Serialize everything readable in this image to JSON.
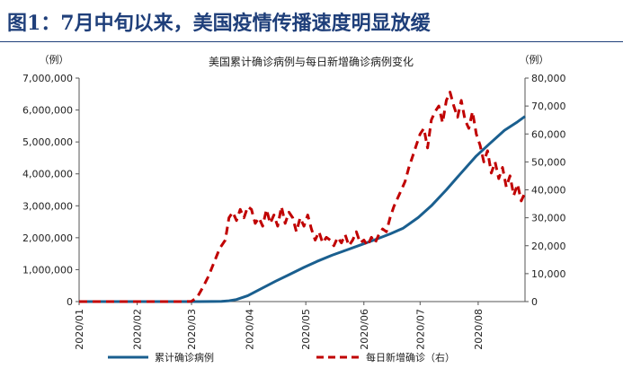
{
  "figure_title": "图1：7月中旬以来，美国疫情传播速度明显放缓",
  "colors": {
    "title": "#1f3f7a",
    "cumulative": "#1a5f8f",
    "daily": "#c00000",
    "axis": "#555555"
  },
  "chart_data": {
    "type": "line",
    "title": "美国累计确诊病例与每日新增确诊病例变化",
    "left_unit": "（例）",
    "right_unit": "（例）",
    "grid": false,
    "legend_position": "bottom",
    "x_start": "2020-01-01",
    "x_end": "2020-08-26",
    "x_ticks": [
      {
        "date": "2020-01-01",
        "label": "2020/01"
      },
      {
        "date": "2020-02-01",
        "label": "2020/02"
      },
      {
        "date": "2020-03-01",
        "label": "2020/03"
      },
      {
        "date": "2020-04-01",
        "label": "2020/04"
      },
      {
        "date": "2020-05-01",
        "label": "2020/05"
      },
      {
        "date": "2020-06-01",
        "label": "2020/06"
      },
      {
        "date": "2020-07-01",
        "label": "2020/07"
      },
      {
        "date": "2020-08-01",
        "label": "2020/08"
      }
    ],
    "y_left": {
      "range": [
        0,
        7000000
      ],
      "ticks": [
        0,
        1000000,
        2000000,
        3000000,
        4000000,
        5000000,
        6000000,
        7000000
      ],
      "tick_labels": [
        "0",
        "1,000,000",
        "2,000,000",
        "3,000,000",
        "4,000,000",
        "5,000,000",
        "6,000,000",
        "7,000,000"
      ]
    },
    "y_right": {
      "range": [
        0,
        80000
      ],
      "ticks": [
        0,
        10000,
        20000,
        30000,
        40000,
        50000,
        60000,
        70000,
        80000
      ],
      "tick_labels": [
        "0",
        "10,000",
        "20,000",
        "30,000",
        "40,000",
        "50,000",
        "60,000",
        "70,000",
        "80,000"
      ]
    },
    "series": [
      {
        "name": "累计确诊病例",
        "axis": "left",
        "style": "solid",
        "points": [
          [
            "2020-01-01",
            0
          ],
          [
            "2020-02-01",
            0
          ],
          [
            "2020-02-25",
            0
          ],
          [
            "2020-03-05",
            200
          ],
          [
            "2020-03-12",
            1600
          ],
          [
            "2020-03-17",
            6500
          ],
          [
            "2020-03-21",
            25000
          ],
          [
            "2020-03-25",
            65000
          ],
          [
            "2020-03-31",
            185000
          ],
          [
            "2020-04-07",
            400000
          ],
          [
            "2020-04-15",
            640000
          ],
          [
            "2020-04-22",
            840000
          ],
          [
            "2020-04-30",
            1070000
          ],
          [
            "2020-05-07",
            1260000
          ],
          [
            "2020-05-15",
            1450000
          ],
          [
            "2020-05-22",
            1600000
          ],
          [
            "2020-05-31",
            1790000
          ],
          [
            "2020-06-07",
            1940000
          ],
          [
            "2020-06-15",
            2120000
          ],
          [
            "2020-06-22",
            2300000
          ],
          [
            "2020-06-30",
            2630000
          ],
          [
            "2020-07-07",
            3000000
          ],
          [
            "2020-07-15",
            3500000
          ],
          [
            "2020-07-22",
            3970000
          ],
          [
            "2020-07-31",
            4560000
          ],
          [
            "2020-08-07",
            4940000
          ],
          [
            "2020-08-15",
            5360000
          ],
          [
            "2020-08-22",
            5630000
          ],
          [
            "2020-08-26",
            5800000
          ]
        ]
      },
      {
        "name": "每日新增确诊（右）",
        "axis": "right",
        "style": "dashed",
        "points": [
          [
            "2020-01-01",
            0
          ],
          [
            "2020-02-26",
            0
          ],
          [
            "2020-03-01",
            100
          ],
          [
            "2020-03-04",
            1500
          ],
          [
            "2020-03-07",
            5000
          ],
          [
            "2020-03-10",
            9000
          ],
          [
            "2020-03-13",
            14000
          ],
          [
            "2020-03-16",
            19000
          ],
          [
            "2020-03-19",
            22000
          ],
          [
            "2020-03-21",
            30000
          ],
          [
            "2020-03-23",
            32000
          ],
          [
            "2020-03-25",
            29000
          ],
          [
            "2020-03-27",
            33000
          ],
          [
            "2020-03-29",
            30000
          ],
          [
            "2020-03-31",
            34000
          ],
          [
            "2020-04-02",
            33000
          ],
          [
            "2020-04-04",
            28000
          ],
          [
            "2020-04-06",
            30000
          ],
          [
            "2020-04-08",
            27000
          ],
          [
            "2020-04-10",
            33000
          ],
          [
            "2020-04-12",
            28000
          ],
          [
            "2020-04-14",
            31000
          ],
          [
            "2020-04-16",
            27000
          ],
          [
            "2020-04-18",
            34000
          ],
          [
            "2020-04-20",
            28000
          ],
          [
            "2020-04-22",
            32000
          ],
          [
            "2020-04-24",
            30000
          ],
          [
            "2020-04-26",
            25000
          ],
          [
            "2020-04-28",
            30000
          ],
          [
            "2020-04-30",
            27000
          ],
          [
            "2020-05-02",
            31000
          ],
          [
            "2020-05-04",
            26000
          ],
          [
            "2020-05-06",
            22000
          ],
          [
            "2020-05-08",
            25000
          ],
          [
            "2020-05-10",
            21000
          ],
          [
            "2020-05-12",
            23000
          ],
          [
            "2020-05-14",
            22000
          ],
          [
            "2020-05-16",
            20000
          ],
          [
            "2020-05-18",
            23000
          ],
          [
            "2020-05-20",
            21000
          ],
          [
            "2020-05-22",
            24000
          ],
          [
            "2020-05-24",
            20000
          ],
          [
            "2020-05-26",
            22000
          ],
          [
            "2020-05-28",
            25000
          ],
          [
            "2020-05-30",
            21000
          ],
          [
            "2020-06-01",
            22000
          ],
          [
            "2020-06-03",
            20000
          ],
          [
            "2020-06-05",
            23000
          ],
          [
            "2020-06-07",
            21000
          ],
          [
            "2020-06-09",
            24000
          ],
          [
            "2020-06-11",
            26000
          ],
          [
            "2020-06-13",
            25000
          ],
          [
            "2020-06-15",
            30000
          ],
          [
            "2020-06-17",
            34000
          ],
          [
            "2020-06-19",
            37000
          ],
          [
            "2020-06-21",
            40000
          ],
          [
            "2020-06-23",
            43000
          ],
          [
            "2020-06-25",
            48000
          ],
          [
            "2020-06-27",
            52000
          ],
          [
            "2020-06-29",
            56000
          ],
          [
            "2020-07-01",
            60000
          ],
          [
            "2020-07-03",
            62000
          ],
          [
            "2020-07-05",
            55000
          ],
          [
            "2020-07-07",
            65000
          ],
          [
            "2020-07-09",
            68000
          ],
          [
            "2020-07-11",
            70000
          ],
          [
            "2020-07-13",
            64000
          ],
          [
            "2020-07-15",
            72000
          ],
          [
            "2020-07-17",
            75000
          ],
          [
            "2020-07-19",
            70000
          ],
          [
            "2020-07-21",
            66000
          ],
          [
            "2020-07-23",
            72000
          ],
          [
            "2020-07-25",
            65000
          ],
          [
            "2020-07-27",
            62000
          ],
          [
            "2020-07-29",
            68000
          ],
          [
            "2020-07-31",
            60000
          ],
          [
            "2020-08-02",
            56000
          ],
          [
            "2020-08-04",
            50000
          ],
          [
            "2020-08-06",
            54000
          ],
          [
            "2020-08-08",
            46000
          ],
          [
            "2020-08-10",
            50000
          ],
          [
            "2020-08-12",
            44000
          ],
          [
            "2020-08-14",
            48000
          ],
          [
            "2020-08-16",
            41000
          ],
          [
            "2020-08-18",
            45000
          ],
          [
            "2020-08-20",
            38000
          ],
          [
            "2020-08-22",
            42000
          ],
          [
            "2020-08-24",
            36000
          ],
          [
            "2020-08-26",
            39000
          ]
        ]
      }
    ]
  }
}
